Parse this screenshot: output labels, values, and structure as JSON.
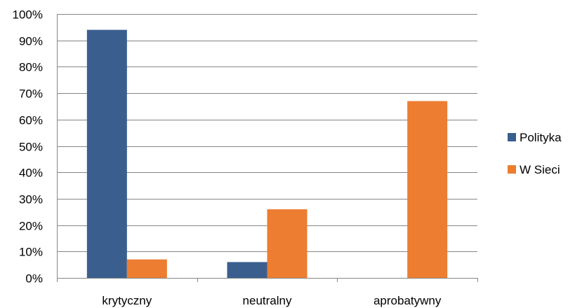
{
  "chart_data": {
    "type": "bar",
    "categories": [
      "krytyczny",
      "neutralny",
      "aprobatywny"
    ],
    "series": [
      {
        "name": "Polityka",
        "values": [
          0.94,
          0.06,
          0.0
        ],
        "color": "#3A5F8F"
      },
      {
        "name": "W Sieci",
        "values": [
          0.07,
          0.26,
          0.67
        ],
        "color": "#ED7D31"
      }
    ],
    "title": "",
    "xlabel": "",
    "ylabel": "",
    "ylim": [
      0,
      1
    ],
    "yticks": [
      0,
      0.1,
      0.2,
      0.3,
      0.4,
      0.5,
      0.6,
      0.7,
      0.8,
      0.9,
      1.0
    ],
    "ytick_labels": [
      "0%",
      "10%",
      "20%",
      "30%",
      "40%",
      "50%",
      "60%",
      "70%",
      "80%",
      "90%",
      "100%"
    ],
    "grid": true,
    "legend_position": "right"
  }
}
